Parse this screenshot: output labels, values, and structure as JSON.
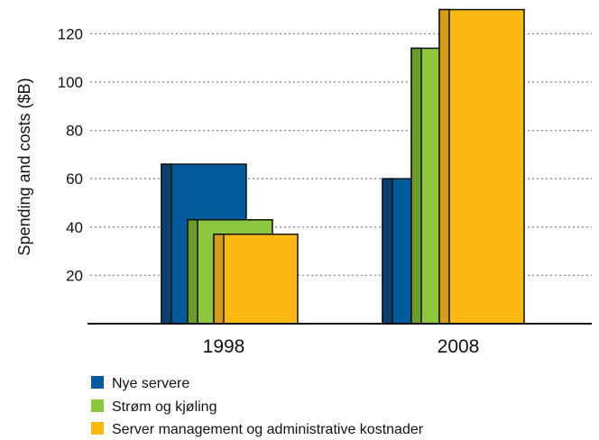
{
  "chart_data": {
    "type": "bar",
    "title": "",
    "xlabel": "",
    "ylabel": "Spending and costs ($B)",
    "ylim": [
      0,
      130
    ],
    "yticks": [
      20,
      40,
      60,
      80,
      100,
      120
    ],
    "ytick_labels": [
      "20",
      "40",
      "60",
      "80",
      "100",
      "120"
    ],
    "grid": true,
    "legend_position": "bottom-left",
    "categories": [
      "1998",
      "2008"
    ],
    "series": [
      {
        "name": "Nye servere",
        "color": "#005a9c",
        "side_color": "#0b3f6e",
        "values": [
          66,
          60
        ]
      },
      {
        "name": "Strøm og kjøling",
        "color": "#8dc63f",
        "side_color": "#6c9b2e",
        "values": [
          43,
          114
        ]
      },
      {
        "name": "Server management og administrative kostnader",
        "color": "#fdb913",
        "side_color": "#d49c1c",
        "values": [
          37,
          130
        ]
      }
    ]
  }
}
